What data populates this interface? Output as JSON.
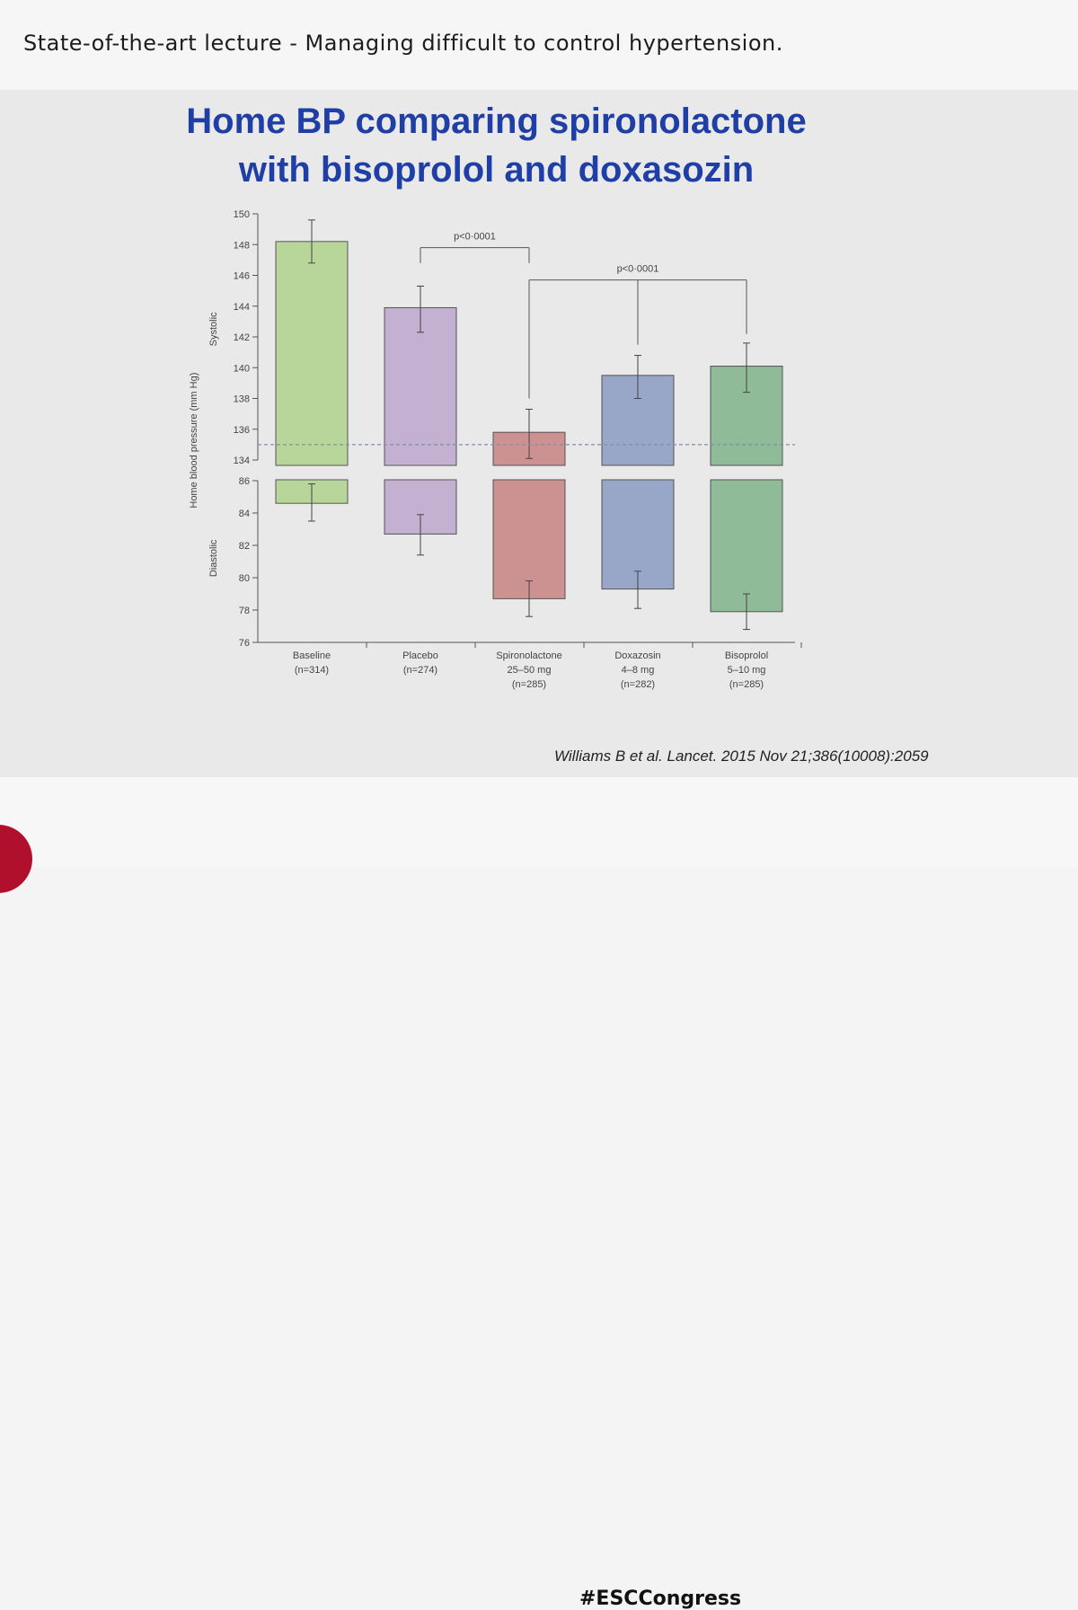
{
  "header": {
    "lecture_title": "State-of-the-art lecture - Managing difficult to control hypertension."
  },
  "slide": {
    "title_line1": "Home BP comparing spironolactone",
    "title_line2": "with bisoprolol and doxasozin",
    "citation": "Williams B et al. Lancet. 2015 Nov 21;386(10008):2059"
  },
  "footer": {
    "hashtag": "#ESCCongress"
  },
  "chart_data": {
    "type": "bar",
    "ylabel": "Home blood pressure (mm Hg)",
    "panels": [
      {
        "name": "Systolic",
        "ylim": [
          134,
          150
        ],
        "ticks": [
          134,
          136,
          138,
          140,
          142,
          144,
          146,
          148,
          150
        ],
        "reference_line": 135
      },
      {
        "name": "Diastolic",
        "ylim": [
          76,
          86
        ],
        "ticks": [
          76,
          78,
          80,
          82,
          84,
          86
        ]
      }
    ],
    "categories": [
      {
        "lines": [
          "Baseline",
          "(n=314)"
        ]
      },
      {
        "lines": [
          "Placebo",
          "(n=274)"
        ]
      },
      {
        "lines": [
          "Spironolactone",
          "25–50 mg",
          "(n=285)"
        ]
      },
      {
        "lines": [
          "Doxazosin",
          "4–8 mg",
          "(n=282)"
        ]
      },
      {
        "lines": [
          "Bisoprolol",
          "5–10 mg",
          "(n=285)"
        ]
      }
    ],
    "colors": [
      "#b9d69a",
      "#c4b0d0",
      "#cc9292",
      "#98a6c8",
      "#8fbb98"
    ],
    "systolic": {
      "values": [
        148.2,
        143.9,
        135.8,
        139.5,
        140.1
      ],
      "err_low": [
        146.8,
        142.3,
        134.1,
        138.0,
        138.4
      ],
      "err_high": [
        149.6,
        145.3,
        137.3,
        140.8,
        141.6
      ]
    },
    "diastolic": {
      "values": [
        84.6,
        82.7,
        78.7,
        79.3,
        77.9
      ],
      "err_low": [
        83.5,
        81.4,
        77.6,
        78.1,
        76.8
      ],
      "err_high": [
        85.8,
        83.9,
        79.8,
        80.4,
        79.0
      ]
    },
    "annotations": [
      {
        "label": "p<0·0001",
        "from": 1,
        "to": 2
      },
      {
        "label": "p<0·0001",
        "from": 2,
        "to": [
          3,
          4
        ]
      }
    ]
  }
}
